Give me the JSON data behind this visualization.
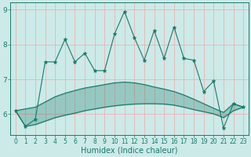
{
  "xlabel": "Humidex (Indice chaleur)",
  "background_color": "#cceae8",
  "grid_color": "#f0b0b0",
  "line_color": "#1a7a6a",
  "x_values": [
    0,
    1,
    2,
    3,
    4,
    5,
    6,
    7,
    8,
    9,
    10,
    11,
    12,
    13,
    14,
    15,
    16,
    17,
    18,
    19,
    20,
    21,
    22,
    23
  ],
  "main_line": [
    6.1,
    5.65,
    5.85,
    7.5,
    7.5,
    8.15,
    7.5,
    7.75,
    7.25,
    7.25,
    8.3,
    8.95,
    8.2,
    7.55,
    8.4,
    7.6,
    8.5,
    7.6,
    7.55,
    6.65,
    6.95,
    5.6,
    6.3,
    6.2
  ],
  "trend_upper": [
    6.1,
    6.15,
    6.2,
    6.35,
    6.5,
    6.6,
    6.68,
    6.75,
    6.8,
    6.85,
    6.9,
    6.92,
    6.9,
    6.85,
    6.78,
    6.72,
    6.65,
    6.55,
    6.43,
    6.3,
    6.17,
    6.05,
    6.3,
    6.2
  ],
  "trend_lower": [
    6.1,
    5.65,
    5.7,
    5.8,
    5.9,
    5.97,
    6.03,
    6.1,
    6.15,
    6.2,
    6.24,
    6.27,
    6.29,
    6.3,
    6.3,
    6.29,
    6.26,
    6.2,
    6.13,
    6.07,
    6.01,
    5.9,
    6.1,
    6.2
  ],
  "ylim": [
    5.4,
    9.2
  ],
  "yticks": [
    6,
    7,
    8,
    9
  ],
  "xticks": [
    0,
    1,
    2,
    3,
    4,
    5,
    6,
    7,
    8,
    9,
    10,
    11,
    12,
    13,
    14,
    15,
    16,
    17,
    18,
    19,
    20,
    21,
    22,
    23
  ],
  "figwidth": 3.2,
  "figheight": 2.0,
  "dpi": 100
}
